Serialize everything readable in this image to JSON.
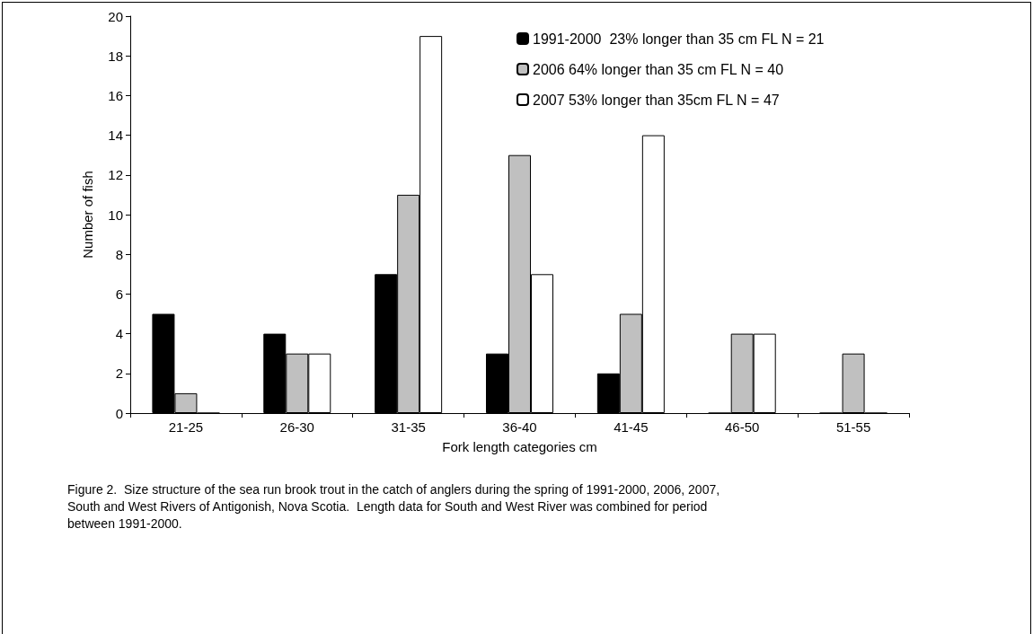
{
  "chart_data": {
    "type": "bar",
    "xlabel": "Fork length categories cm",
    "ylabel": "Number of fish",
    "categories": [
      "21-25",
      "26-30",
      "31-35",
      "36-40",
      "41-45",
      "46-50",
      "51-55"
    ],
    "series": [
      {
        "name": "1991-2000  23% longer than 35 cm FL N = 21",
        "color": "#000000",
        "values": [
          5,
          4,
          7,
          3,
          2,
          0,
          0
        ]
      },
      {
        "name": "2006 64% longer than 35 cm FL N = 40",
        "color": "#c0c0c0",
        "values": [
          1,
          3,
          11,
          13,
          5,
          4,
          3
        ]
      },
      {
        "name": "2007 53% longer than 35cm FL N = 47",
        "color": "#ffffff",
        "values": [
          0,
          3,
          19,
          7,
          14,
          4,
          0
        ]
      }
    ],
    "ylim": [
      0,
      20
    ],
    "yticks": [
      0,
      2,
      4,
      6,
      8,
      10,
      12,
      14,
      16,
      18,
      20
    ],
    "grid": false,
    "legend": "top right",
    "annotations": [
      "Figure 2.  Size structure of the sea run brook trout in the catch of anglers during the spring of 1991-2000, 2006, 2007, South and West Rivers of Antigonish, Nova Scotia.  Length data for South and West River was combined for period between 1991-2000."
    ]
  }
}
